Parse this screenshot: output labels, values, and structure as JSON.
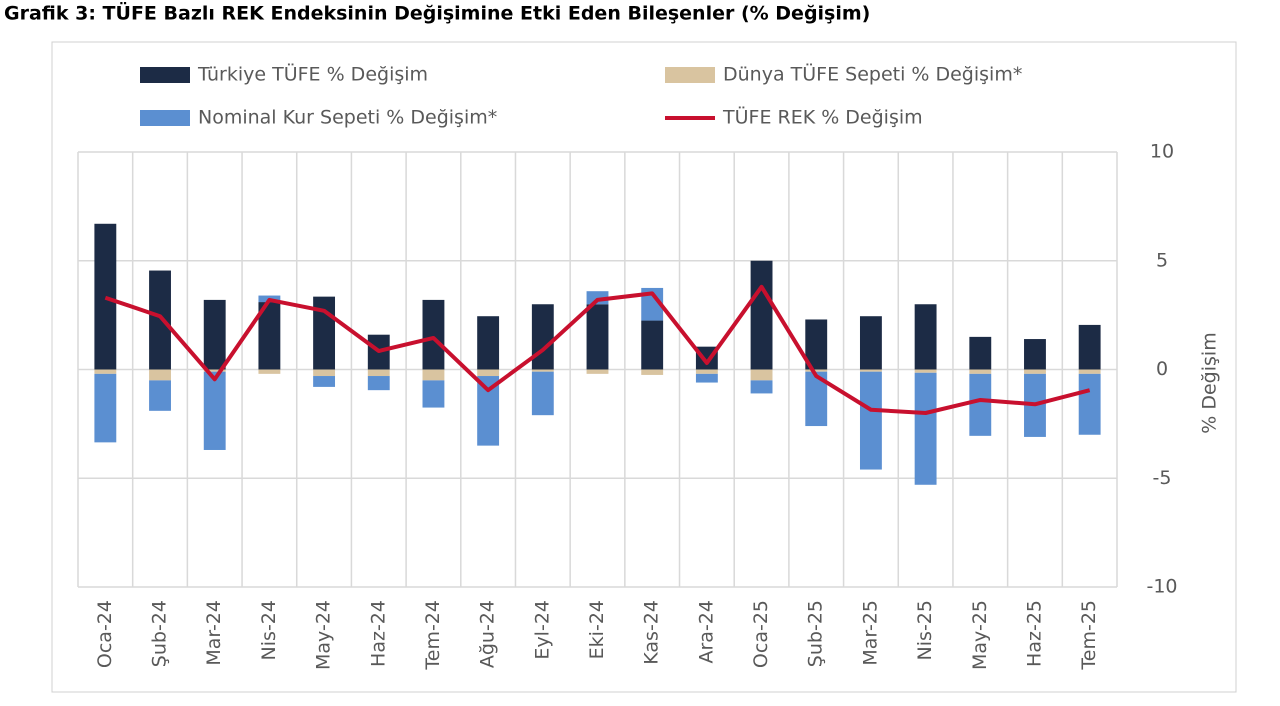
{
  "chart_data": {
    "type": "bar",
    "stacked": true,
    "title": "Grafik 3: TÜFE Bazlı REK Endeksinin Değişimine Etki Eden Bileşenler (% Değişim)",
    "y_label": "% Değişim",
    "categories": [
      "Oca-24",
      "Şub-24",
      "Mar-24",
      "Nis-24",
      "May-24",
      "Haz-24",
      "Tem-24",
      "Ağu-24",
      "Eyl-24",
      "Eki-24",
      "Kas-24",
      "Ara-24",
      "Oca-25",
      "Şub-25",
      "Mar-25",
      "Nis-25",
      "May-25",
      "Haz-25",
      "Tem-25"
    ],
    "series": [
      {
        "name": "Türkiye TÜFE % Değişim",
        "color": "#1c2b45",
        "values": [
          6.7,
          4.55,
          3.2,
          3.1,
          3.35,
          1.6,
          3.2,
          2.45,
          3.0,
          3.0,
          2.25,
          1.05,
          5.0,
          2.3,
          2.45,
          3.0,
          1.5,
          1.4,
          2.05
        ]
      },
      {
        "name": "Dünya TÜFE Sepeti % Değişim*",
        "color": "#d9c4a0",
        "values": [
          -0.2,
          -0.5,
          -0.1,
          -0.2,
          -0.3,
          -0.3,
          -0.5,
          -0.3,
          -0.1,
          -0.2,
          -0.25,
          -0.2,
          -0.5,
          -0.1,
          -0.1,
          -0.15,
          -0.2,
          -0.2,
          -0.2
        ]
      },
      {
        "name": "Nominal Kur Sepeti % Değişim*",
        "color": "#5b8fd1",
        "values": [
          -3.15,
          -1.4,
          -3.6,
          0.3,
          -0.5,
          -0.65,
          -1.25,
          -3.2,
          -2.0,
          0.6,
          1.5,
          -0.4,
          -0.6,
          -2.5,
          -4.5,
          -5.15,
          -2.85,
          -2.9,
          -2.8
        ]
      },
      {
        "name": "TÜFE REK % Değişim",
        "type": "line",
        "color": "#c8102e",
        "values": [
          3.3,
          2.45,
          -0.45,
          3.2,
          2.7,
          0.85,
          1.45,
          -0.95,
          0.9,
          3.2,
          3.5,
          0.3,
          3.8,
          -0.3,
          -1.85,
          -2.0,
          -1.4,
          -1.6,
          -0.95
        ]
      }
    ],
    "ylim": [
      -10,
      10
    ],
    "yticks": [
      -10,
      -5,
      0,
      5,
      10
    ],
    "y_axis_side": "right",
    "grid": true
  }
}
